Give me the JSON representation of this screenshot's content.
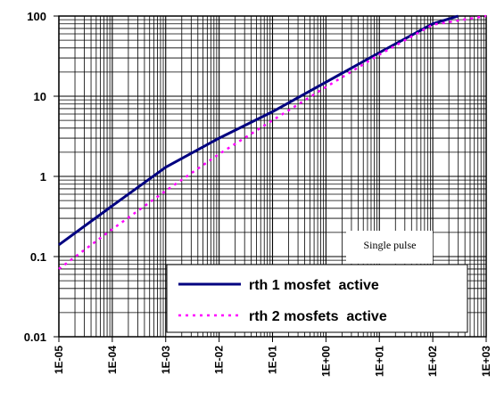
{
  "chart_data": {
    "type": "line",
    "title": "",
    "xlabel": "",
    "ylabel": "",
    "x_scale": "log",
    "y_scale": "log",
    "xlim": [
      1e-05,
      1000
    ],
    "ylim": [
      0.01,
      100
    ],
    "grid": true,
    "legend_position": "bottom-right",
    "x_tick_labels": [
      "1E-05",
      "1E-04",
      "1E-03",
      "1E-02",
      "1E-01",
      "1E+00",
      "1E+01",
      "1E+02",
      "1E+03"
    ],
    "y_tick_labels": [
      "0.01",
      "0.1",
      "1",
      "10",
      "100"
    ],
    "annotation": "Single pulse",
    "series": [
      {
        "name": "rth 1 mosfet  active",
        "color": "#000080",
        "style": "solid",
        "x": [
          1e-05,
          0.0001,
          0.001,
          0.01,
          0.1,
          1,
          10,
          100,
          300
        ],
        "y": [
          0.14,
          0.43,
          1.3,
          3.0,
          6.4,
          15,
          35,
          80,
          100
        ]
      },
      {
        "name": "rth 2 mosfets  active",
        "color": "#ff00ff",
        "style": "dotted",
        "x": [
          1e-05,
          0.0001,
          0.001,
          0.01,
          0.1,
          1,
          10,
          100,
          1000
        ],
        "y": [
          0.07,
          0.22,
          0.66,
          1.9,
          5.0,
          13,
          33,
          78,
          100
        ]
      }
    ]
  }
}
